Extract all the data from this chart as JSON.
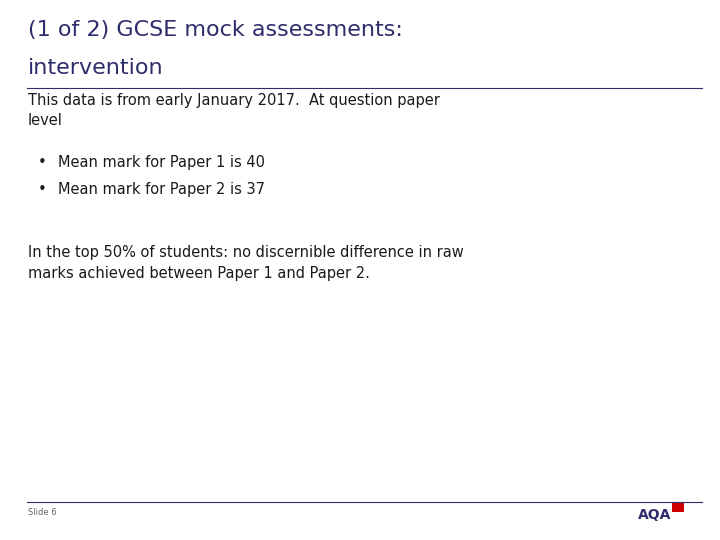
{
  "title_line1": "(1 of 2) GCSE mock assessments:",
  "title_line2": "intervention",
  "title_color": "#2E2D6B",
  "body_color": "#1A1A1A",
  "bg_color": "#FFFFFF",
  "line_color": "#2E2D6B",
  "footer_line_color": "#2E2D6B",
  "subtitle": "This data is from early January 2017.  At question paper\nlevel",
  "bullets": [
    "Mean mark for Paper 1 is 40",
    "Mean mark for Paper 2 is 37"
  ],
  "paragraph": "In the top 50% of students: no discernible difference in raw\nmarks achieved between Paper 1 and Paper 2.",
  "slide_label": "Slide 6",
  "aqa_text": "AQA",
  "title_fontsize": 16,
  "subtitle_fontsize": 10.5,
  "bullet_fontsize": 10.5,
  "paragraph_fontsize": 10.5,
  "footer_fontsize": 6
}
